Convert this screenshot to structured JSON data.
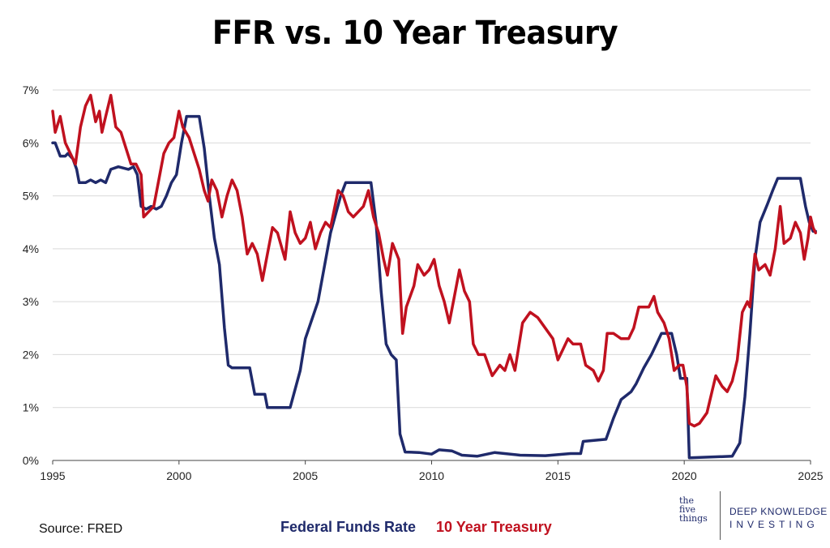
{
  "title": "FFR vs. 10 Year Treasury",
  "source": "Source: FRED",
  "brand": {
    "mark_lines": [
      "the",
      "five",
      "things"
    ],
    "line1": "DEEP KNOWLEDGE",
    "line2": "INVESTING"
  },
  "colors": {
    "ffr": "#1f2a6b",
    "t10": "#c0111f",
    "grid": "#d9d9d9",
    "axis": "#444444"
  },
  "chart_data": {
    "type": "line",
    "title": "FFR vs. 10 Year Treasury",
    "xlabel": "",
    "ylabel": "",
    "xlim": [
      1995,
      2025
    ],
    "ylim": [
      0,
      7
    ],
    "x_ticks": [
      "1995",
      "2000",
      "2005",
      "2010",
      "2015",
      "2020",
      "2025"
    ],
    "y_ticks": [
      "0%",
      "1%",
      "2%",
      "3%",
      "4%",
      "5%",
      "6%",
      "7%"
    ],
    "grid": "horizontal",
    "legend_position": "bottom",
    "series": [
      {
        "name": "Federal Funds Rate",
        "color": "#1f2a6b",
        "points": [
          [
            1995.0,
            6.0
          ],
          [
            1995.1,
            6.0
          ],
          [
            1995.3,
            5.75
          ],
          [
            1995.5,
            5.75
          ],
          [
            1995.6,
            5.8
          ],
          [
            1995.8,
            5.7
          ],
          [
            1995.95,
            5.5
          ],
          [
            1996.05,
            5.25
          ],
          [
            1996.3,
            5.25
          ],
          [
            1996.5,
            5.3
          ],
          [
            1996.7,
            5.25
          ],
          [
            1996.9,
            5.3
          ],
          [
            1997.1,
            5.25
          ],
          [
            1997.3,
            5.5
          ],
          [
            1997.6,
            5.55
          ],
          [
            1998.0,
            5.5
          ],
          [
            1998.2,
            5.55
          ],
          [
            1998.35,
            5.4
          ],
          [
            1998.5,
            4.8
          ],
          [
            1998.7,
            4.75
          ],
          [
            1998.9,
            4.8
          ],
          [
            1999.1,
            4.75
          ],
          [
            1999.3,
            4.8
          ],
          [
            1999.5,
            5.0
          ],
          [
            1999.7,
            5.25
          ],
          [
            1999.9,
            5.4
          ],
          [
            2000.1,
            6.0
          ],
          [
            2000.3,
            6.5
          ],
          [
            2000.8,
            6.5
          ],
          [
            2001.0,
            5.9
          ],
          [
            2001.2,
            5.0
          ],
          [
            2001.4,
            4.2
          ],
          [
            2001.6,
            3.7
          ],
          [
            2001.8,
            2.5
          ],
          [
            2001.95,
            1.8
          ],
          [
            2002.1,
            1.75
          ],
          [
            2002.8,
            1.75
          ],
          [
            2003.0,
            1.25
          ],
          [
            2003.4,
            1.25
          ],
          [
            2003.5,
            1.0
          ],
          [
            2004.4,
            1.0
          ],
          [
            2004.8,
            1.7
          ],
          [
            2005.0,
            2.3
          ],
          [
            2005.5,
            3.0
          ],
          [
            2006.0,
            4.3
          ],
          [
            2006.4,
            5.0
          ],
          [
            2006.6,
            5.25
          ],
          [
            2007.6,
            5.25
          ],
          [
            2007.8,
            4.5
          ],
          [
            2008.0,
            3.2
          ],
          [
            2008.2,
            2.2
          ],
          [
            2008.4,
            2.0
          ],
          [
            2008.6,
            1.9
          ],
          [
            2008.75,
            0.5
          ],
          [
            2008.95,
            0.16
          ],
          [
            2009.5,
            0.15
          ],
          [
            2010.0,
            0.12
          ],
          [
            2010.3,
            0.2
          ],
          [
            2010.8,
            0.18
          ],
          [
            2011.2,
            0.1
          ],
          [
            2011.8,
            0.08
          ],
          [
            2012.5,
            0.15
          ],
          [
            2013.5,
            0.1
          ],
          [
            2014.5,
            0.09
          ],
          [
            2015.5,
            0.13
          ],
          [
            2015.9,
            0.13
          ],
          [
            2016.0,
            0.36
          ],
          [
            2016.9,
            0.4
          ],
          [
            2017.2,
            0.8
          ],
          [
            2017.5,
            1.15
          ],
          [
            2017.9,
            1.3
          ],
          [
            2018.1,
            1.45
          ],
          [
            2018.4,
            1.75
          ],
          [
            2018.7,
            2.0
          ],
          [
            2018.9,
            2.2
          ],
          [
            2019.1,
            2.4
          ],
          [
            2019.5,
            2.4
          ],
          [
            2019.7,
            2.0
          ],
          [
            2019.85,
            1.55
          ],
          [
            2020.1,
            1.55
          ],
          [
            2020.2,
            0.05
          ],
          [
            2021.9,
            0.08
          ],
          [
            2022.2,
            0.33
          ],
          [
            2022.4,
            1.2
          ],
          [
            2022.6,
            2.4
          ],
          [
            2022.8,
            3.8
          ],
          [
            2023.0,
            4.5
          ],
          [
            2023.3,
            4.85
          ],
          [
            2023.5,
            5.1
          ],
          [
            2023.7,
            5.33
          ],
          [
            2024.6,
            5.33
          ],
          [
            2024.8,
            4.8
          ],
          [
            2024.95,
            4.5
          ],
          [
            2025.1,
            4.33
          ],
          [
            2025.2,
            4.33
          ]
        ]
      },
      {
        "name": "10 Year Treasury",
        "color": "#c0111f",
        "points": [
          [
            1995.0,
            6.6
          ],
          [
            1995.1,
            6.2
          ],
          [
            1995.3,
            6.5
          ],
          [
            1995.5,
            6.0
          ],
          [
            1995.7,
            5.8
          ],
          [
            1995.9,
            5.6
          ],
          [
            1996.1,
            6.3
          ],
          [
            1996.3,
            6.7
          ],
          [
            1996.5,
            6.9
          ],
          [
            1996.7,
            6.4
          ],
          [
            1996.85,
            6.6
          ],
          [
            1996.95,
            6.2
          ],
          [
            1997.1,
            6.5
          ],
          [
            1997.3,
            6.9
          ],
          [
            1997.5,
            6.3
          ],
          [
            1997.7,
            6.2
          ],
          [
            1997.9,
            5.9
          ],
          [
            1998.1,
            5.6
          ],
          [
            1998.3,
            5.6
          ],
          [
            1998.5,
            5.4
          ],
          [
            1998.6,
            4.6
          ],
          [
            1998.8,
            4.7
          ],
          [
            1999.0,
            4.8
          ],
          [
            1999.2,
            5.3
          ],
          [
            1999.4,
            5.8
          ],
          [
            1999.6,
            6.0
          ],
          [
            1999.8,
            6.1
          ],
          [
            2000.0,
            6.6
          ],
          [
            2000.15,
            6.3
          ],
          [
            2000.4,
            6.1
          ],
          [
            2000.6,
            5.8
          ],
          [
            2000.8,
            5.5
          ],
          [
            2001.0,
            5.1
          ],
          [
            2001.15,
            4.9
          ],
          [
            2001.3,
            5.3
          ],
          [
            2001.5,
            5.1
          ],
          [
            2001.7,
            4.6
          ],
          [
            2001.9,
            5.0
          ],
          [
            2002.1,
            5.3
          ],
          [
            2002.3,
            5.1
          ],
          [
            2002.5,
            4.6
          ],
          [
            2002.7,
            3.9
          ],
          [
            2002.9,
            4.1
          ],
          [
            2003.1,
            3.9
          ],
          [
            2003.3,
            3.4
          ],
          [
            2003.5,
            3.9
          ],
          [
            2003.7,
            4.4
          ],
          [
            2003.9,
            4.3
          ],
          [
            2004.2,
            3.8
          ],
          [
            2004.4,
            4.7
          ],
          [
            2004.6,
            4.3
          ],
          [
            2004.8,
            4.1
          ],
          [
            2005.0,
            4.2
          ],
          [
            2005.2,
            4.5
          ],
          [
            2005.4,
            4.0
          ],
          [
            2005.6,
            4.3
          ],
          [
            2005.8,
            4.5
          ],
          [
            2006.0,
            4.4
          ],
          [
            2006.3,
            5.1
          ],
          [
            2006.5,
            5.0
          ],
          [
            2006.7,
            4.7
          ],
          [
            2006.9,
            4.6
          ],
          [
            2007.1,
            4.7
          ],
          [
            2007.3,
            4.8
          ],
          [
            2007.5,
            5.1
          ],
          [
            2007.7,
            4.6
          ],
          [
            2007.9,
            4.3
          ],
          [
            2008.1,
            3.8
          ],
          [
            2008.25,
            3.5
          ],
          [
            2008.45,
            4.1
          ],
          [
            2008.7,
            3.8
          ],
          [
            2008.85,
            2.4
          ],
          [
            2009.0,
            2.9
          ],
          [
            2009.3,
            3.3
          ],
          [
            2009.45,
            3.7
          ],
          [
            2009.7,
            3.5
          ],
          [
            2009.9,
            3.6
          ],
          [
            2010.1,
            3.8
          ],
          [
            2010.3,
            3.3
          ],
          [
            2010.5,
            3.0
          ],
          [
            2010.7,
            2.6
          ],
          [
            2010.9,
            3.1
          ],
          [
            2011.1,
            3.6
          ],
          [
            2011.3,
            3.2
          ],
          [
            2011.5,
            3.0
          ],
          [
            2011.65,
            2.2
          ],
          [
            2011.85,
            2.0
          ],
          [
            2012.1,
            2.0
          ],
          [
            2012.4,
            1.6
          ],
          [
            2012.7,
            1.8
          ],
          [
            2012.9,
            1.7
          ],
          [
            2013.1,
            2.0
          ],
          [
            2013.3,
            1.7
          ],
          [
            2013.6,
            2.6
          ],
          [
            2013.9,
            2.8
          ],
          [
            2014.2,
            2.7
          ],
          [
            2014.5,
            2.5
          ],
          [
            2014.8,
            2.3
          ],
          [
            2015.0,
            1.9
          ],
          [
            2015.2,
            2.1
          ],
          [
            2015.4,
            2.3
          ],
          [
            2015.6,
            2.2
          ],
          [
            2015.9,
            2.2
          ],
          [
            2016.1,
            1.8
          ],
          [
            2016.4,
            1.7
          ],
          [
            2016.6,
            1.5
          ],
          [
            2016.8,
            1.7
          ],
          [
            2016.95,
            2.4
          ],
          [
            2017.2,
            2.4
          ],
          [
            2017.5,
            2.3
          ],
          [
            2017.8,
            2.3
          ],
          [
            2018.0,
            2.5
          ],
          [
            2018.2,
            2.9
          ],
          [
            2018.4,
            2.9
          ],
          [
            2018.6,
            2.9
          ],
          [
            2018.8,
            3.1
          ],
          [
            2018.95,
            2.8
          ],
          [
            2019.2,
            2.6
          ],
          [
            2019.4,
            2.3
          ],
          [
            2019.6,
            1.7
          ],
          [
            2019.8,
            1.8
          ],
          [
            2019.95,
            1.8
          ],
          [
            2020.1,
            1.4
          ],
          [
            2020.2,
            0.7
          ],
          [
            2020.4,
            0.65
          ],
          [
            2020.6,
            0.7
          ],
          [
            2020.9,
            0.9
          ],
          [
            2021.1,
            1.3
          ],
          [
            2021.25,
            1.6
          ],
          [
            2021.5,
            1.4
          ],
          [
            2021.7,
            1.3
          ],
          [
            2021.9,
            1.5
          ],
          [
            2022.1,
            1.9
          ],
          [
            2022.3,
            2.8
          ],
          [
            2022.5,
            3.0
          ],
          [
            2022.6,
            2.9
          ],
          [
            2022.8,
            3.9
          ],
          [
            2022.95,
            3.6
          ],
          [
            2023.2,
            3.7
          ],
          [
            2023.4,
            3.5
          ],
          [
            2023.6,
            4.0
          ],
          [
            2023.8,
            4.8
          ],
          [
            2023.95,
            4.1
          ],
          [
            2024.2,
            4.2
          ],
          [
            2024.4,
            4.5
          ],
          [
            2024.6,
            4.3
          ],
          [
            2024.75,
            3.8
          ],
          [
            2024.9,
            4.2
          ],
          [
            2025.0,
            4.6
          ],
          [
            2025.1,
            4.4
          ],
          [
            2025.2,
            4.3
          ]
        ]
      }
    ]
  }
}
